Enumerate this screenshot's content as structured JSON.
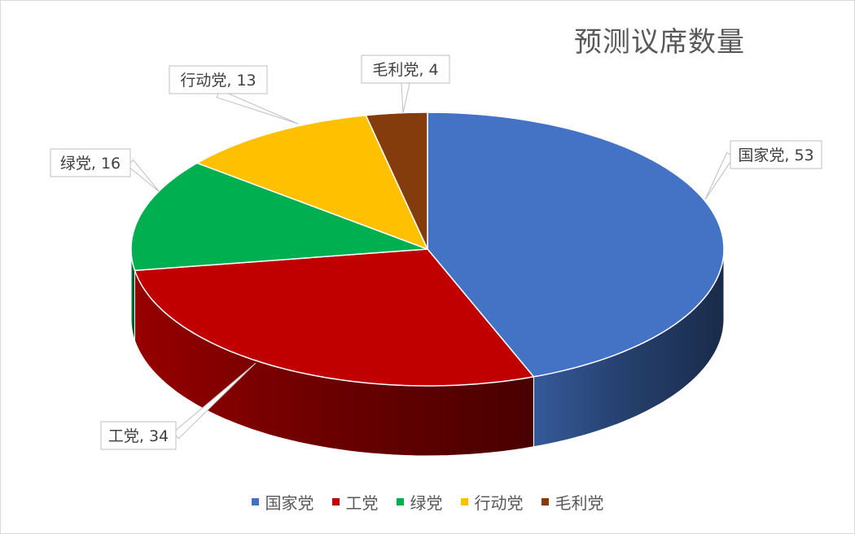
{
  "chart_data": {
    "type": "pie",
    "style": "3d",
    "title": "预测议席数量",
    "series": [
      {
        "name": "国家党",
        "value": 53,
        "color": "#4472C4",
        "data_label": "国家党, 53"
      },
      {
        "name": "工党",
        "value": 34,
        "color": "#C00000",
        "data_label": "工党, 34"
      },
      {
        "name": "绿党",
        "value": 16,
        "color": "#00B050",
        "data_label": "绿党, 16"
      },
      {
        "name": "行动党",
        "value": 13,
        "color": "#FFC000",
        "data_label": "行动党, 13"
      },
      {
        "name": "毛利党",
        "value": 4,
        "color": "#843C0C",
        "data_label": "毛利党, 4"
      }
    ],
    "legend_position": "bottom"
  }
}
